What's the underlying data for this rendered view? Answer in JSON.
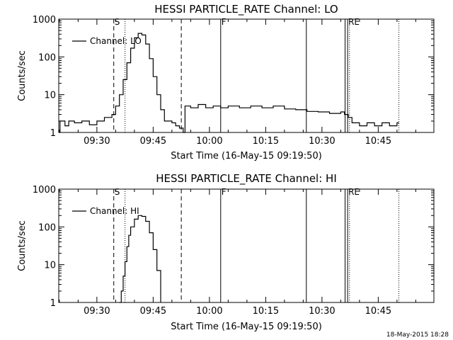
{
  "footer": {
    "timestamp": "18-May-2015 18:28"
  },
  "chart_data": [
    {
      "type": "line",
      "title": "HESSI PARTICLE_RATE Channel: LO",
      "xlabel": "Start Time (16-May-15 09:19:50)",
      "ylabel": "Counts/sec",
      "y_scale": "log",
      "ylim": [
        1,
        1000
      ],
      "xlim": [
        "09:19:50",
        "10:59:50"
      ],
      "grid": false,
      "legend": {
        "placement": "top-left",
        "entries": [
          "Channel: LO"
        ]
      },
      "x_ticks": [
        "09:30",
        "09:45",
        "10:00",
        "10:15",
        "10:30",
        "10:45"
      ],
      "y_ticks": [
        "1",
        "10",
        "100",
        "1000"
      ],
      "markers": [
        {
          "time": "09:34:30",
          "style": "dashed",
          "label": "S"
        },
        {
          "time": "09:37:30",
          "style": "dotted",
          "label": ""
        },
        {
          "time": "09:52:30",
          "style": "dashed",
          "label": ""
        },
        {
          "time": "10:03:00",
          "style": "solid",
          "label": "F"
        },
        {
          "time": "10:25:50",
          "style": "solid",
          "label": ""
        },
        {
          "time": "10:36:10",
          "style": "solid",
          "label": ""
        },
        {
          "time": "10:36:50",
          "style": "solid",
          "label": "RE"
        },
        {
          "time": "10:37:20",
          "style": "dotted",
          "label": ""
        },
        {
          "time": "10:50:30",
          "style": "dotted",
          "label": ""
        }
      ],
      "series": [
        {
          "name": "Channel: LO",
          "points": [
            [
              "09:19:50",
              1
            ],
            [
              "09:20:10",
              2
            ],
            [
              "09:21:30",
              1.5
            ],
            [
              "09:22:30",
              2
            ],
            [
              "09:24:00",
              1.8
            ],
            [
              "09:26:00",
              2
            ],
            [
              "09:28:00",
              1.6
            ],
            [
              "09:30:00",
              2
            ],
            [
              "09:32:00",
              2.5
            ],
            [
              "09:34:00",
              3
            ],
            [
              "09:35:00",
              5
            ],
            [
              "09:36:00",
              10
            ],
            [
              "09:37:00",
              25
            ],
            [
              "09:38:00",
              70
            ],
            [
              "09:39:00",
              170
            ],
            [
              "09:40:00",
              320
            ],
            [
              "09:41:00",
              420
            ],
            [
              "09:42:00",
              380
            ],
            [
              "09:43:00",
              220
            ],
            [
              "09:44:00",
              90
            ],
            [
              "09:45:00",
              30
            ],
            [
              "09:46:00",
              10
            ],
            [
              "09:47:00",
              4
            ],
            [
              "09:48:00",
              2
            ],
            [
              "09:49:00",
              2
            ],
            [
              "09:50:00",
              1.8
            ],
            [
              "09:51:00",
              1.5
            ],
            [
              "09:52:00",
              1.3
            ],
            [
              "09:53:00",
              1
            ],
            [
              "09:53:30",
              5
            ],
            [
              "09:55:00",
              4.5
            ],
            [
              "09:57:00",
              5.5
            ],
            [
              "09:59:00",
              4.5
            ],
            [
              "10:01:00",
              5
            ],
            [
              "10:03:00",
              4.5
            ],
            [
              "10:05:00",
              5
            ],
            [
              "10:08:00",
              4.5
            ],
            [
              "10:11:00",
              5
            ],
            [
              "10:14:00",
              4.5
            ],
            [
              "10:17:00",
              5
            ],
            [
              "10:20:00",
              4.2
            ],
            [
              "10:23:00",
              4
            ],
            [
              "10:26:00",
              3.6
            ],
            [
              "10:29:00",
              3.5
            ],
            [
              "10:32:00",
              3.2
            ],
            [
              "10:35:00",
              3.5
            ],
            [
              "10:36:00",
              3
            ],
            [
              "10:37:00",
              2.5
            ],
            [
              "10:38:00",
              1.8
            ],
            [
              "10:40:00",
              1.5
            ],
            [
              "10:42:00",
              1.8
            ],
            [
              "10:44:00",
              1.5
            ],
            [
              "10:46:00",
              1.8
            ],
            [
              "10:48:00",
              1.5
            ],
            [
              "10:50:00",
              1.8
            ],
            [
              "10:50:30",
              1.8
            ]
          ]
        }
      ]
    },
    {
      "type": "line",
      "title": "HESSI PARTICLE_RATE Channel: HI",
      "xlabel": "Start Time (16-May-15 09:19:50)",
      "ylabel": "Counts/sec",
      "y_scale": "log",
      "ylim": [
        1,
        1000
      ],
      "xlim": [
        "09:19:50",
        "10:59:50"
      ],
      "grid": false,
      "legend": {
        "placement": "top-left",
        "entries": [
          "Channel: HI"
        ]
      },
      "x_ticks": [
        "09:30",
        "09:45",
        "10:00",
        "10:15",
        "10:30",
        "10:45"
      ],
      "y_ticks": [
        "1",
        "10",
        "100",
        "1000"
      ],
      "markers": [
        {
          "time": "09:34:30",
          "style": "dashed",
          "label": "S"
        },
        {
          "time": "09:37:30",
          "style": "dotted",
          "label": ""
        },
        {
          "time": "09:52:30",
          "style": "dashed",
          "label": ""
        },
        {
          "time": "10:03:00",
          "style": "solid",
          "label": "F"
        },
        {
          "time": "10:25:50",
          "style": "solid",
          "label": ""
        },
        {
          "time": "10:36:10",
          "style": "solid",
          "label": ""
        },
        {
          "time": "10:36:50",
          "style": "solid",
          "label": "RE"
        },
        {
          "time": "10:37:20",
          "style": "dotted",
          "label": ""
        },
        {
          "time": "10:50:30",
          "style": "dotted",
          "label": ""
        }
      ],
      "series": [
        {
          "name": "Channel: HI",
          "points": [
            [
              "09:36:00",
              1
            ],
            [
              "09:36:30",
              2
            ],
            [
              "09:37:00",
              5
            ],
            [
              "09:37:30",
              12
            ],
            [
              "09:38:00",
              30
            ],
            [
              "09:38:30",
              60
            ],
            [
              "09:39:00",
              100
            ],
            [
              "09:40:00",
              160
            ],
            [
              "09:41:00",
              200
            ],
            [
              "09:42:00",
              190
            ],
            [
              "09:43:00",
              140
            ],
            [
              "09:44:00",
              70
            ],
            [
              "09:45:00",
              25
            ],
            [
              "09:46:00",
              7
            ],
            [
              "09:47:00",
              1
            ]
          ]
        }
      ]
    }
  ]
}
